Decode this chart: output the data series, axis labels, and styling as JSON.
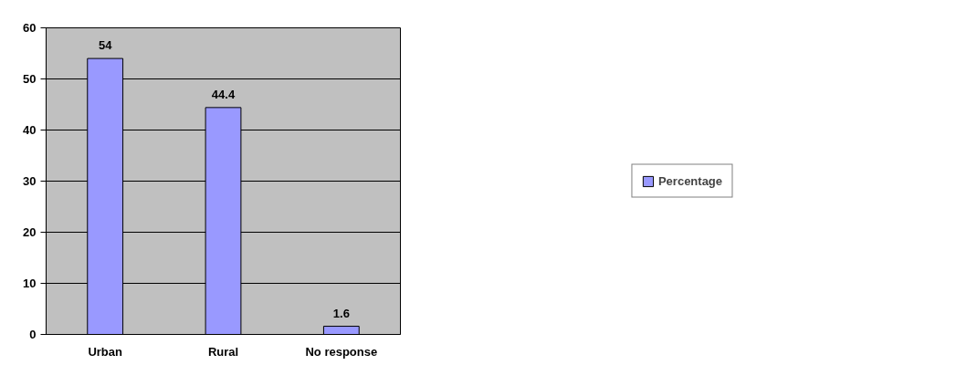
{
  "chart_data": {
    "type": "bar",
    "categories": [
      "Urban",
      "Rural",
      "No response"
    ],
    "series": [
      {
        "name": "Percentage",
        "color": "#9999ff",
        "values": [
          54,
          44.4,
          1.6
        ]
      }
    ],
    "ylim": [
      0,
      60
    ],
    "yticks": [
      0,
      10,
      20,
      30,
      40,
      50,
      60
    ],
    "grid": "y",
    "legend": "right",
    "data_labels": true
  }
}
